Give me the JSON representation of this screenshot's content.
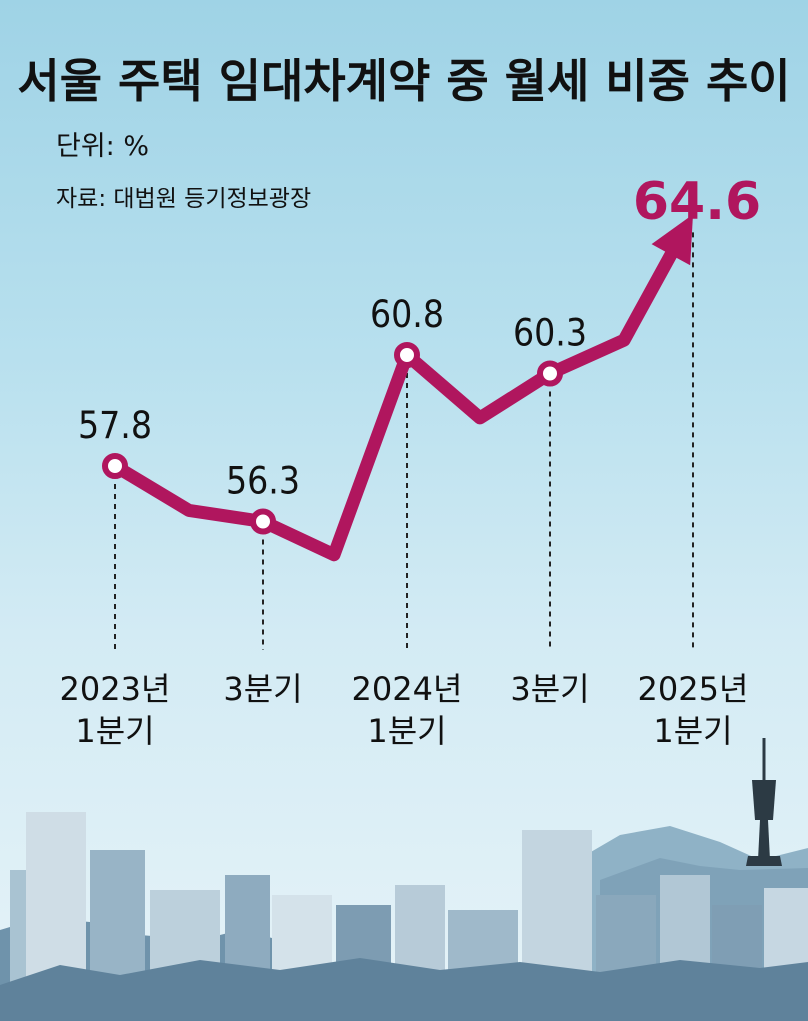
{
  "chart_data": {
    "type": "line",
    "title": "서울 주택 임대차계약 중 월세 비중 추이",
    "unit_label": "단위: %",
    "source_label": "자료: 대법원 등기정보광장",
    "categories": [
      [
        "2023년",
        "1분기"
      ],
      [
        "3분기"
      ],
      [
        "2024년",
        "1분기"
      ],
      [
        "3분기"
      ],
      [
        "2025년",
        "1분기"
      ]
    ],
    "labeled_points": [
      {
        "value": 57.8,
        "label": "57.8"
      },
      {
        "value": 56.3,
        "label": "56.3"
      },
      {
        "value": 60.8,
        "label": "60.8"
      },
      {
        "value": 60.3,
        "label": "60.3"
      },
      {
        "value": 64.6,
        "label": "64.6"
      }
    ],
    "intermediate_values": [
      56.6,
      55.4,
      59.1,
      61.2
    ],
    "highlight_last": true,
    "line_color": "#b0165e",
    "highlight_color": "#b0165e",
    "legend": "none",
    "grid": false
  }
}
